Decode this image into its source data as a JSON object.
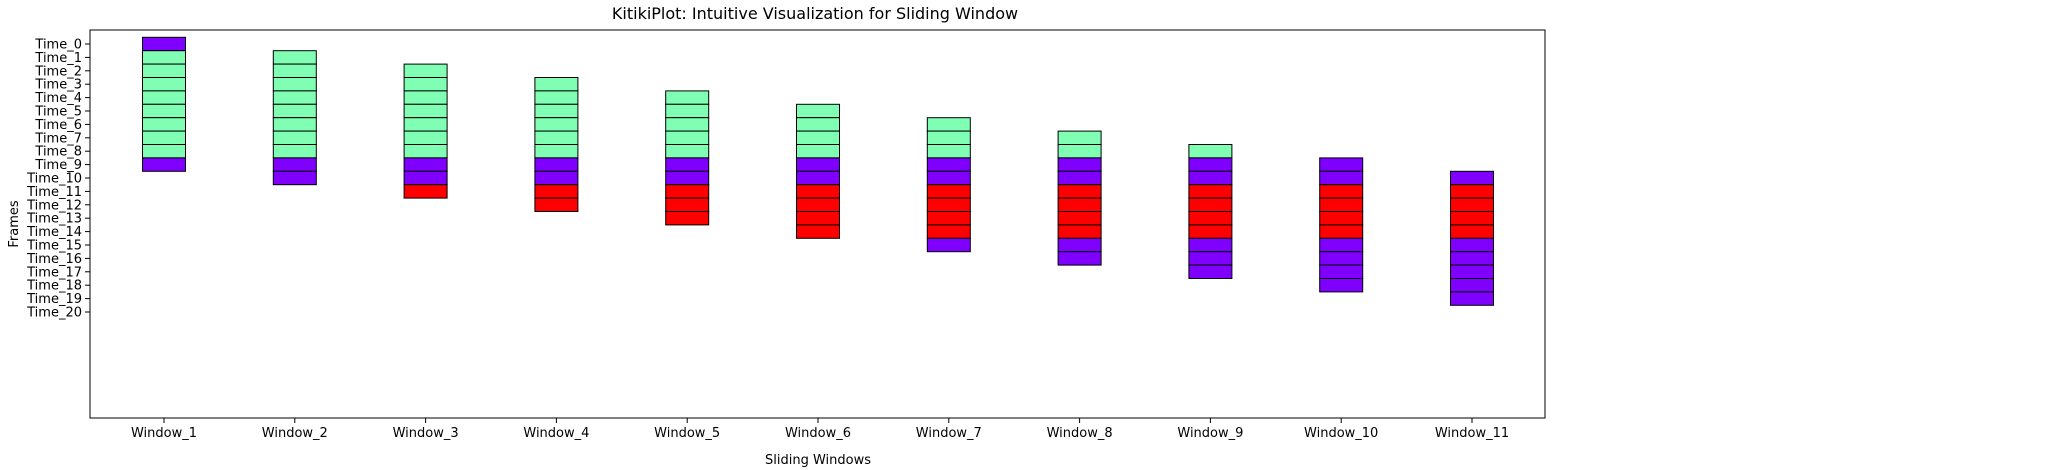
{
  "chart_data": {
    "type": "bar",
    "title": "KitikiPlot: Intuitive Visualization for Sliding Window",
    "xlabel": "Sliding Windows",
    "ylabel": "Frames",
    "categories": [
      "Window_1",
      "Window_2",
      "Window_3",
      "Window_4",
      "Window_5",
      "Window_6",
      "Window_7",
      "Window_8",
      "Window_9",
      "Window_10",
      "Window_11"
    ],
    "y_ticks": [
      "Time_0",
      "Time_1",
      "Time_2",
      "Time_3",
      "Time_4",
      "Time_5",
      "Time_6",
      "Time_7",
      "Time_8",
      "Time_9",
      "Time_10",
      "Time_11",
      "Time_12",
      "Time_13",
      "Time_14",
      "Time_15",
      "Time_16",
      "Time_17",
      "Time_18",
      "Time_19",
      "Time_20"
    ],
    "grid": false,
    "legend": "none",
    "colors": {
      "purple": "#8000ff",
      "green": "#80ffb4",
      "red": "#ff0000",
      "edge": "#000000"
    },
    "windows": [
      {
        "name": "Window_1",
        "start": 0,
        "cells": [
          "purple",
          "green",
          "green",
          "green",
          "green",
          "green",
          "green",
          "green",
          "green",
          "purple"
        ]
      },
      {
        "name": "Window_2",
        "start": 1,
        "cells": [
          "green",
          "green",
          "green",
          "green",
          "green",
          "green",
          "green",
          "green",
          "purple",
          "purple"
        ]
      },
      {
        "name": "Window_3",
        "start": 2,
        "cells": [
          "green",
          "green",
          "green",
          "green",
          "green",
          "green",
          "green",
          "purple",
          "purple",
          "red"
        ]
      },
      {
        "name": "Window_4",
        "start": 3,
        "cells": [
          "green",
          "green",
          "green",
          "green",
          "green",
          "green",
          "purple",
          "purple",
          "red",
          "red"
        ]
      },
      {
        "name": "Window_5",
        "start": 4,
        "cells": [
          "green",
          "green",
          "green",
          "green",
          "green",
          "purple",
          "purple",
          "red",
          "red",
          "red"
        ]
      },
      {
        "name": "Window_6",
        "start": 5,
        "cells": [
          "green",
          "green",
          "green",
          "green",
          "purple",
          "purple",
          "red",
          "red",
          "red",
          "red"
        ]
      },
      {
        "name": "Window_7",
        "start": 6,
        "cells": [
          "green",
          "green",
          "green",
          "purple",
          "purple",
          "red",
          "red",
          "red",
          "red",
          "purple"
        ]
      },
      {
        "name": "Window_8",
        "start": 7,
        "cells": [
          "green",
          "green",
          "purple",
          "purple",
          "red",
          "red",
          "red",
          "red",
          "purple",
          "purple"
        ]
      },
      {
        "name": "Window_9",
        "start": 8,
        "cells": [
          "green",
          "purple",
          "purple",
          "red",
          "red",
          "red",
          "red",
          "purple",
          "purple",
          "purple"
        ]
      },
      {
        "name": "Window_10",
        "start": 9,
        "cells": [
          "purple",
          "purple",
          "red",
          "red",
          "red",
          "red",
          "purple",
          "purple",
          "purple",
          "purple"
        ]
      },
      {
        "name": "Window_11",
        "start": 10,
        "cells": [
          "purple",
          "red",
          "red",
          "red",
          "red",
          "purple",
          "purple",
          "purple",
          "purple",
          "purple"
        ]
      }
    ]
  }
}
